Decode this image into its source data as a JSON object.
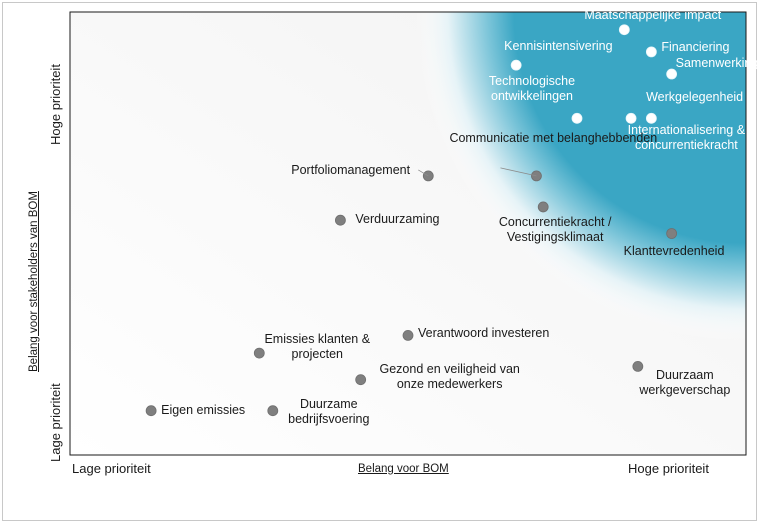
{
  "chart_data": {
    "type": "scatter",
    "xlabel": "Belang voor BOM",
    "ylabel": "Belang voor stakeholders van BOM",
    "x_tick_labels": [
      "Lage prioriteit",
      "Hoge prioriteit"
    ],
    "y_tick_labels": [
      "Lage prioriteit",
      "Hoge prioriteit"
    ],
    "xlim": [
      0,
      100
    ],
    "ylim": [
      0,
      100
    ],
    "grid": false,
    "highlight_color": "#3aa6c4",
    "point_color_highlight": "#ffffff",
    "point_color_normal": "#7f7f7f",
    "points": [
      {
        "label": "Maatschappelijke impact",
        "x": 82,
        "y": 96,
        "highlight": true
      },
      {
        "label": "Financiering",
        "x": 86,
        "y": 91,
        "highlight": true
      },
      {
        "label": "Kennisintensivering",
        "x": 66,
        "y": 88,
        "highlight": true
      },
      {
        "label": "Samenwerking",
        "x": 89,
        "y": 86,
        "highlight": true
      },
      {
        "label": "Technologische ontwikkelingen",
        "x": 75,
        "y": 76,
        "highlight": true
      },
      {
        "label": "Werkgelegenheid",
        "x": 83,
        "y": 76,
        "highlight": true
      },
      {
        "label": "Internationalisering & concurrentiekracht",
        "x": 86,
        "y": 76,
        "highlight": true
      },
      {
        "label": "Communicatie met belanghebbenden",
        "x": 69,
        "y": 63,
        "highlight": false
      },
      {
        "label": "Portfoliomanagement",
        "x": 53,
        "y": 63,
        "highlight": false
      },
      {
        "label": "Concurrentiekracht / Vestigingsklimaat",
        "x": 70,
        "y": 56,
        "highlight": false
      },
      {
        "label": "Verduurzaming",
        "x": 40,
        "y": 53,
        "highlight": false
      },
      {
        "label": "Klanttevredenheid",
        "x": 89,
        "y": 50,
        "highlight": false
      },
      {
        "label": "Verantwoord investeren",
        "x": 50,
        "y": 27,
        "highlight": false
      },
      {
        "label": "Emissies klanten & projecten",
        "x": 28,
        "y": 23,
        "highlight": false
      },
      {
        "label": "Gezond en veiligheid van onze medewerkers",
        "x": 43,
        "y": 17,
        "highlight": false
      },
      {
        "label": "Duurzaam werkgeverschap",
        "x": 84,
        "y": 20,
        "highlight": false
      },
      {
        "label": "Eigen emissies",
        "x": 12,
        "y": 10,
        "highlight": false
      },
      {
        "label": "Duurzame bedrijfsvoering",
        "x": 30,
        "y": 10,
        "highlight": false
      }
    ]
  }
}
